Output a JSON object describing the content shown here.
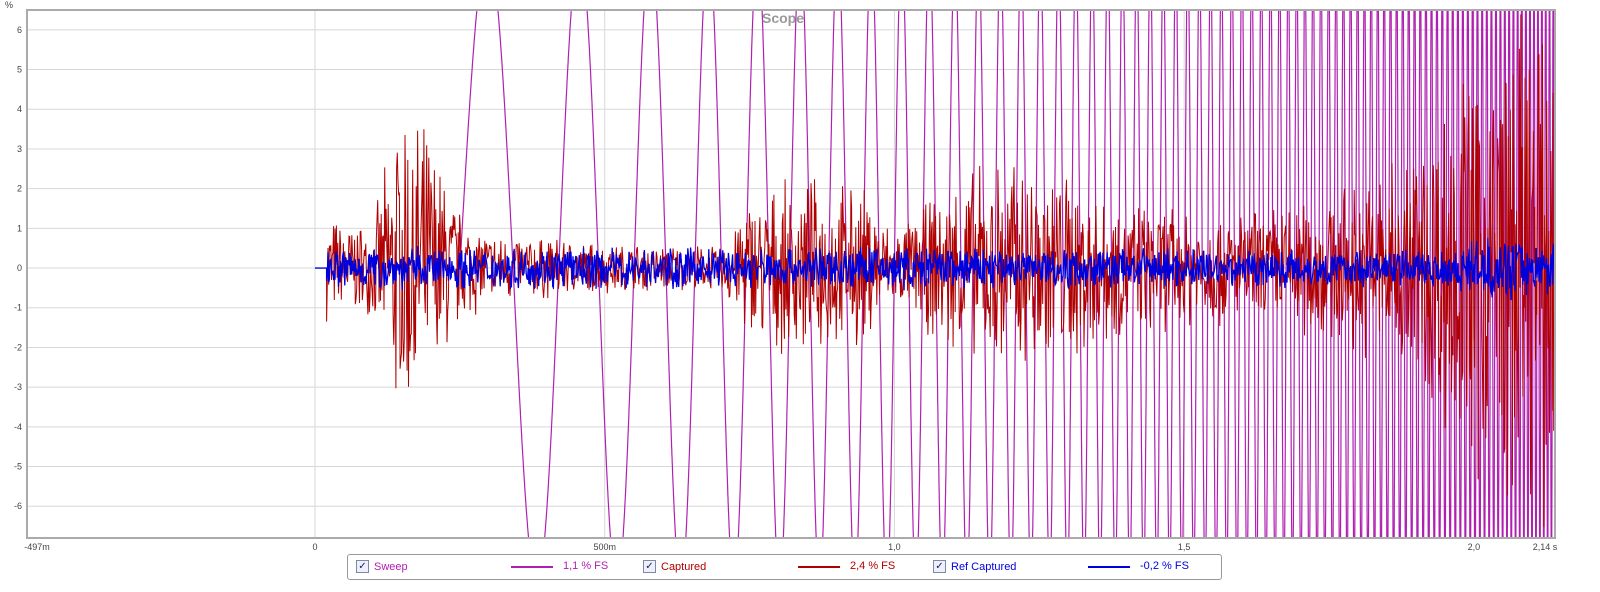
{
  "chart_data": {
    "type": "line",
    "title": "Scope",
    "ylabel": "%",
    "xlabel": "s",
    "xlim": [
      -0.497,
      2.14
    ],
    "ylim": [
      -6.8,
      6.5
    ],
    "x_ticks": [
      {
        "v": -0.497,
        "label": "-497m"
      },
      {
        "v": 0,
        "label": "0"
      },
      {
        "v": 0.5,
        "label": "500m"
      },
      {
        "v": 1.0,
        "label": "1,0"
      },
      {
        "v": 1.5,
        "label": "1,5"
      },
      {
        "v": 2.0,
        "label": "2,0"
      },
      {
        "v": 2.14,
        "label": "2,14 s"
      }
    ],
    "y_ticks": [
      6,
      5,
      4,
      3,
      2,
      1,
      0,
      -1,
      -2,
      -3,
      -4,
      -5,
      -6
    ],
    "grid": true,
    "series": [
      {
        "name": "Sweep",
        "color": "#b020b0",
        "value_label": "1,1 % FS",
        "start": 0.25,
        "amplitude": 8,
        "envelope": [
          [
            0.25,
            8
          ],
          [
            2.14,
            8
          ]
        ]
      },
      {
        "name": "Captured",
        "color": "#b00000",
        "value_label": "2,4 % FS",
        "start": 0.02,
        "envelope": [
          [
            0.02,
            1.4
          ],
          [
            0.1,
            1.2
          ],
          [
            0.15,
            4.7
          ],
          [
            0.2,
            3.6
          ],
          [
            0.25,
            1.6
          ],
          [
            0.3,
            1.0
          ],
          [
            0.5,
            0.7
          ],
          [
            0.7,
            0.6
          ],
          [
            0.75,
            2.0
          ],
          [
            0.85,
            2.4
          ],
          [
            0.95,
            2.2
          ],
          [
            1.0,
            1.0
          ],
          [
            1.1,
            2.4
          ],
          [
            1.2,
            3.1
          ],
          [
            1.3,
            2.7
          ],
          [
            1.4,
            1.8
          ],
          [
            1.6,
            1.5
          ],
          [
            1.8,
            2.3
          ],
          [
            1.9,
            3.5
          ],
          [
            1.98,
            5.5
          ],
          [
            2.05,
            6.8
          ],
          [
            2.14,
            6.8
          ]
        ]
      },
      {
        "name": "Ref Captured",
        "color": "#0000dd",
        "value_label": "-0,2 % FS",
        "start": 0.02,
        "envelope": [
          [
            0.02,
            0.6
          ],
          [
            0.5,
            0.55
          ],
          [
            1.0,
            0.6
          ],
          [
            1.5,
            0.55
          ],
          [
            1.9,
            0.5
          ],
          [
            2.05,
            0.85
          ],
          [
            2.14,
            0.7
          ]
        ]
      }
    ]
  }
}
